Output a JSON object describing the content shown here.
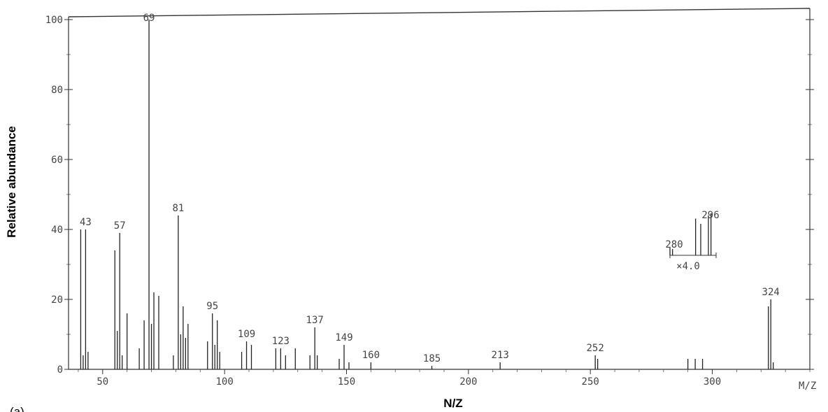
{
  "figure_label": "(a)",
  "chart_data": {
    "type": "bar",
    "xlabel": "N/Z",
    "x_axis_unit": "M/Z",
    "ylabel": "Relative abundance",
    "xlim": [
      36,
      340
    ],
    "ylim": [
      0,
      102
    ],
    "x_ticks": [
      50,
      100,
      150,
      200,
      250,
      300
    ],
    "y_ticks": [
      0,
      20,
      40,
      60,
      80,
      100
    ],
    "x_tick_labels": [
      "50",
      "100",
      "150",
      "200",
      "250",
      "300"
    ],
    "y_tick_labels": [
      "0",
      "20",
      "40",
      "60",
      "80",
      "100"
    ],
    "peaks": [
      {
        "x": 41,
        "y": 40
      },
      {
        "x": 42,
        "y": 4
      },
      {
        "x": 43,
        "y": 40
      },
      {
        "x": 44,
        "y": 5
      },
      {
        "x": 55,
        "y": 34
      },
      {
        "x": 56,
        "y": 11
      },
      {
        "x": 57,
        "y": 39
      },
      {
        "x": 58,
        "y": 4
      },
      {
        "x": 60,
        "y": 16
      },
      {
        "x": 65,
        "y": 6
      },
      {
        "x": 67,
        "y": 14
      },
      {
        "x": 69,
        "y": 100
      },
      {
        "x": 70,
        "y": 13
      },
      {
        "x": 71,
        "y": 22
      },
      {
        "x": 73,
        "y": 21
      },
      {
        "x": 79,
        "y": 4
      },
      {
        "x": 81,
        "y": 44
      },
      {
        "x": 82,
        "y": 10
      },
      {
        "x": 83,
        "y": 18
      },
      {
        "x": 84,
        "y": 9
      },
      {
        "x": 85,
        "y": 13
      },
      {
        "x": 93,
        "y": 8
      },
      {
        "x": 95,
        "y": 16
      },
      {
        "x": 96,
        "y": 7
      },
      {
        "x": 97,
        "y": 14
      },
      {
        "x": 98,
        "y": 5
      },
      {
        "x": 107,
        "y": 5
      },
      {
        "x": 109,
        "y": 8
      },
      {
        "x": 111,
        "y": 7
      },
      {
        "x": 121,
        "y": 6
      },
      {
        "x": 123,
        "y": 6
      },
      {
        "x": 125,
        "y": 4
      },
      {
        "x": 129,
        "y": 6
      },
      {
        "x": 135,
        "y": 4
      },
      {
        "x": 137,
        "y": 12
      },
      {
        "x": 138,
        "y": 4
      },
      {
        "x": 147,
        "y": 3
      },
      {
        "x": 149,
        "y": 7
      },
      {
        "x": 151,
        "y": 2
      },
      {
        "x": 160,
        "y": 2
      },
      {
        "x": 185,
        "y": 1
      },
      {
        "x": 213,
        "y": 2
      },
      {
        "x": 252,
        "y": 4
      },
      {
        "x": 253,
        "y": 3
      },
      {
        "x": 290,
        "y": 3
      },
      {
        "x": 293,
        "y": 3
      },
      {
        "x": 296,
        "y": 3
      },
      {
        "x": 323,
        "y": 18
      },
      {
        "x": 324,
        "y": 20
      },
      {
        "x": 325,
        "y": 2
      }
    ],
    "peak_labels": [
      {
        "x": 43,
        "text": "43"
      },
      {
        "x": 57,
        "text": "57"
      },
      {
        "x": 69,
        "text": "69"
      },
      {
        "x": 81,
        "text": "81"
      },
      {
        "x": 95,
        "text": "95"
      },
      {
        "x": 109,
        "text": "109"
      },
      {
        "x": 123,
        "text": "123"
      },
      {
        "x": 137,
        "text": "137"
      },
      {
        "x": 149,
        "text": "149"
      },
      {
        "x": 160,
        "text": "160"
      },
      {
        "x": 185,
        "text": "185"
      },
      {
        "x": 213,
        "text": "213"
      },
      {
        "x": 252,
        "text": "252"
      },
      {
        "x": 324,
        "text": "324"
      }
    ],
    "inset": {
      "magnification": "×4.0",
      "labels": [
        "280",
        "296"
      ],
      "x_range": [
        280,
        298
      ],
      "peaks": [
        {
          "x": 280,
          "y": 8
        },
        {
          "x": 281,
          "y": 6
        },
        {
          "x": 290,
          "y": 35
        },
        {
          "x": 292,
          "y": 30
        },
        {
          "x": 295,
          "y": 38
        },
        {
          "x": 296,
          "y": 40
        }
      ]
    },
    "grid": false,
    "legend": "none"
  }
}
